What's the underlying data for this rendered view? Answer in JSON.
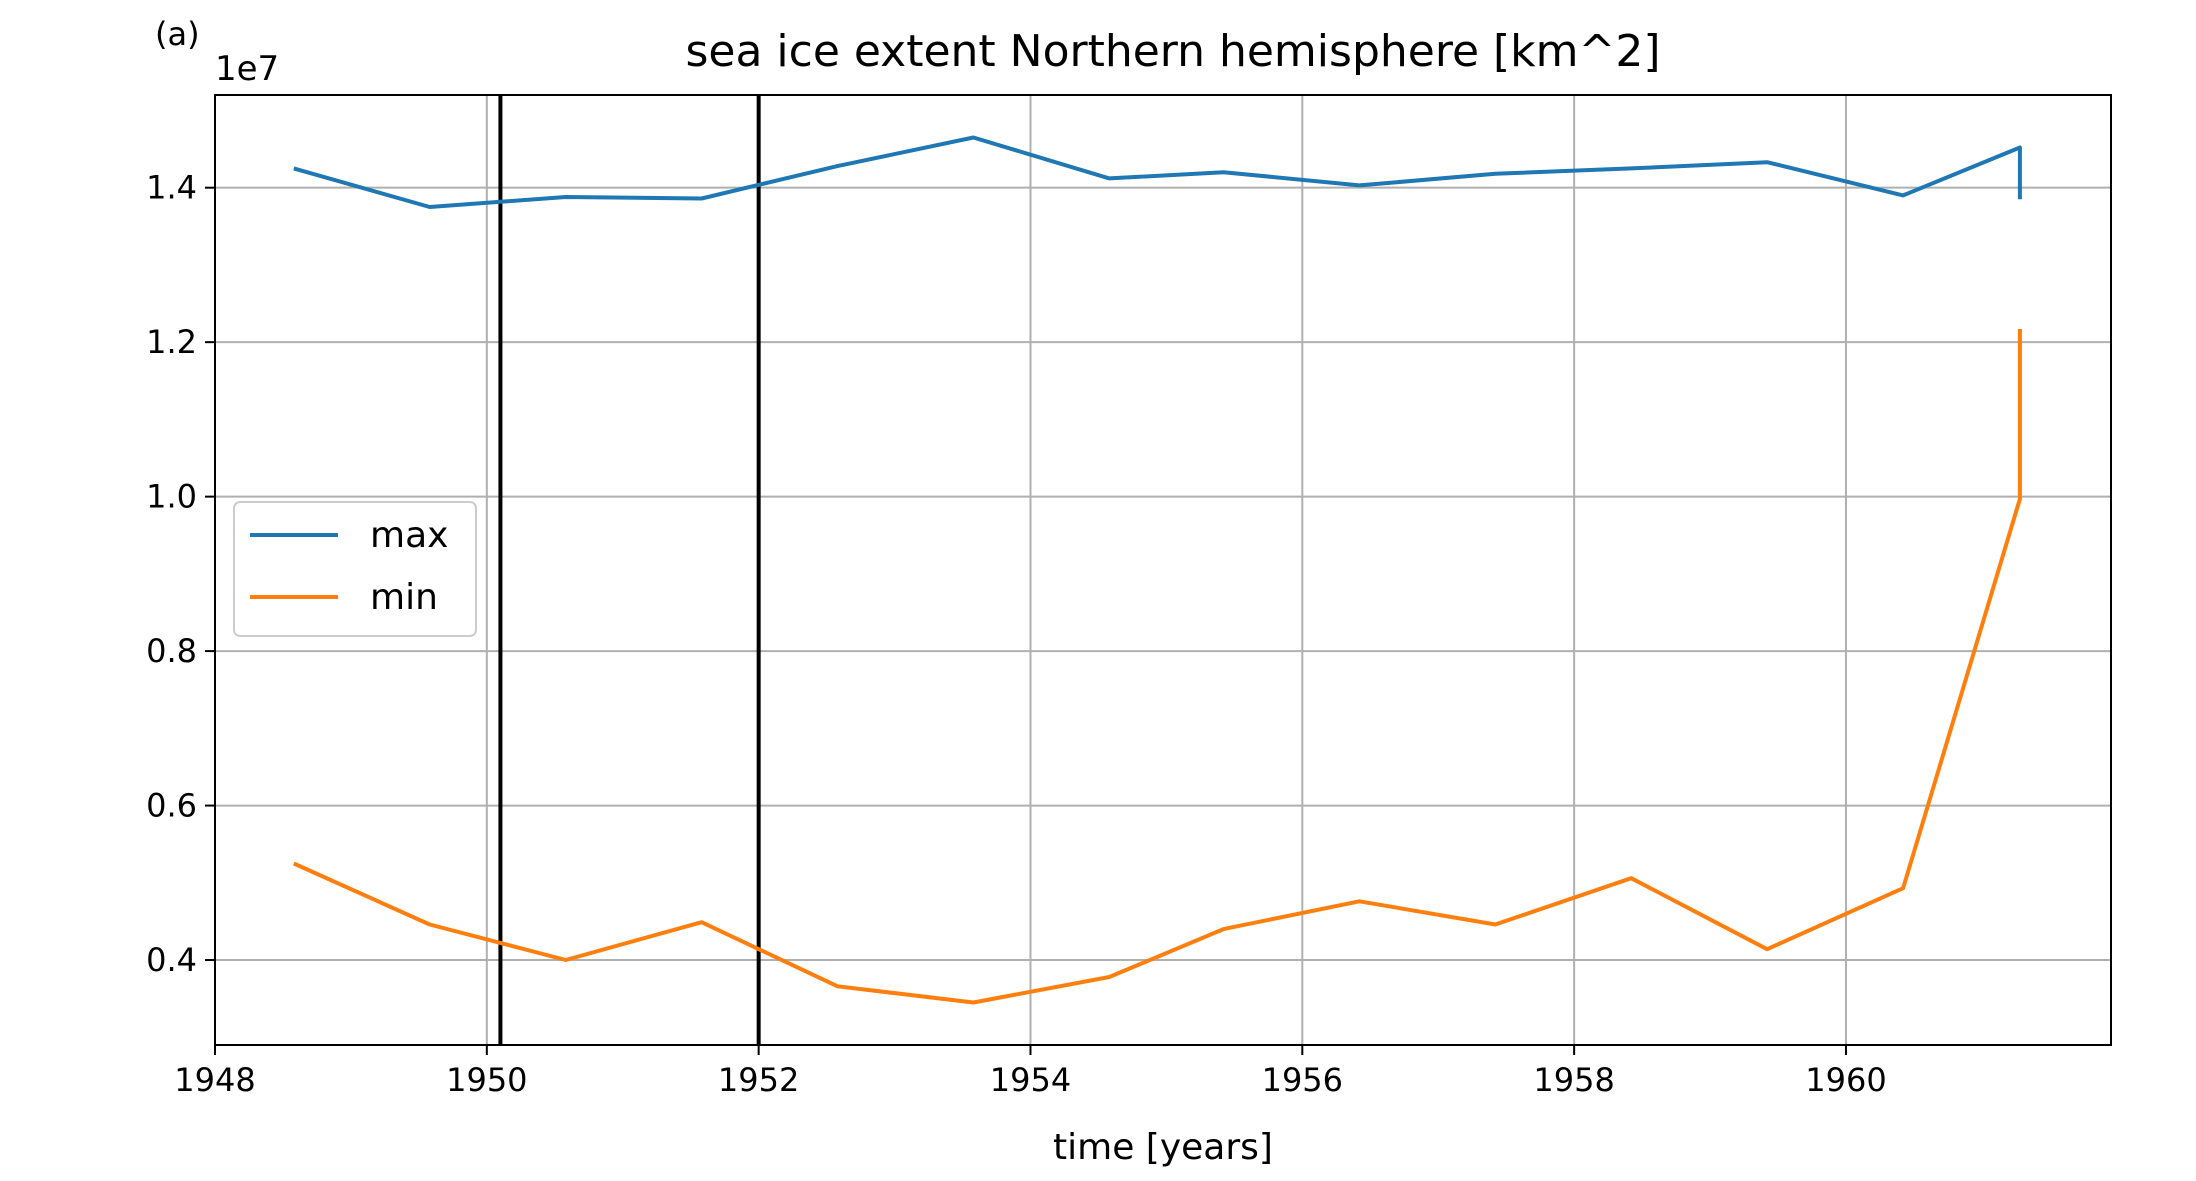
{
  "chart_data": {
    "type": "line",
    "panel_label": "(a)",
    "title": "sea ice extent Northern hemisphere [km^2]",
    "xlabel": "time [years]",
    "ylabel": "",
    "y_multiplier_label": "1e7",
    "xlim": [
      1948.0,
      1961.95
    ],
    "ylim": [
      0.29,
      1.52
    ],
    "x_ticks": [
      1948,
      1950,
      1952,
      1954,
      1956,
      1958,
      1960
    ],
    "y_ticks": [
      0.4,
      0.6,
      0.8,
      1.0,
      1.2,
      1.4
    ],
    "y_tick_labels": [
      "0.4",
      "0.6",
      "0.8",
      "1.0",
      "1.2",
      "1.4"
    ],
    "x_tick_labels": [
      "1948",
      "1950",
      "1952",
      "1954",
      "1956",
      "1958",
      "1960"
    ],
    "grid": true,
    "legend_placement": "center-left",
    "vertical_lines": [
      1950.1,
      1952.0
    ],
    "vertical_line_color": "#000000",
    "series": [
      {
        "name": "max",
        "color": "#1f77b4",
        "x": [
          1948.58,
          1949.58,
          1950.58,
          1951.58,
          1952.58,
          1953.58,
          1954.58,
          1955.42,
          1956.42,
          1957.42,
          1958.42,
          1959.42,
          1960.42,
          1961.28,
          1961.28
        ],
        "y": [
          1.425,
          1.375,
          1.388,
          1.386,
          1.428,
          1.465,
          1.412,
          1.42,
          1.403,
          1.418,
          1.425,
          1.433,
          1.39,
          1.452,
          1.385
        ]
      },
      {
        "name": "min",
        "color": "#ff7f0e",
        "x": [
          1948.58,
          1949.58,
          1950.58,
          1951.58,
          1952.58,
          1953.58,
          1954.58,
          1955.42,
          1956.42,
          1957.42,
          1958.42,
          1959.42,
          1960.42,
          1961.28,
          1961.28
        ],
        "y": [
          0.525,
          0.446,
          0.4,
          0.449,
          0.366,
          0.345,
          0.378,
          0.44,
          0.476,
          0.446,
          0.506,
          0.414,
          0.493,
          0.997,
          1.217
        ]
      }
    ]
  }
}
